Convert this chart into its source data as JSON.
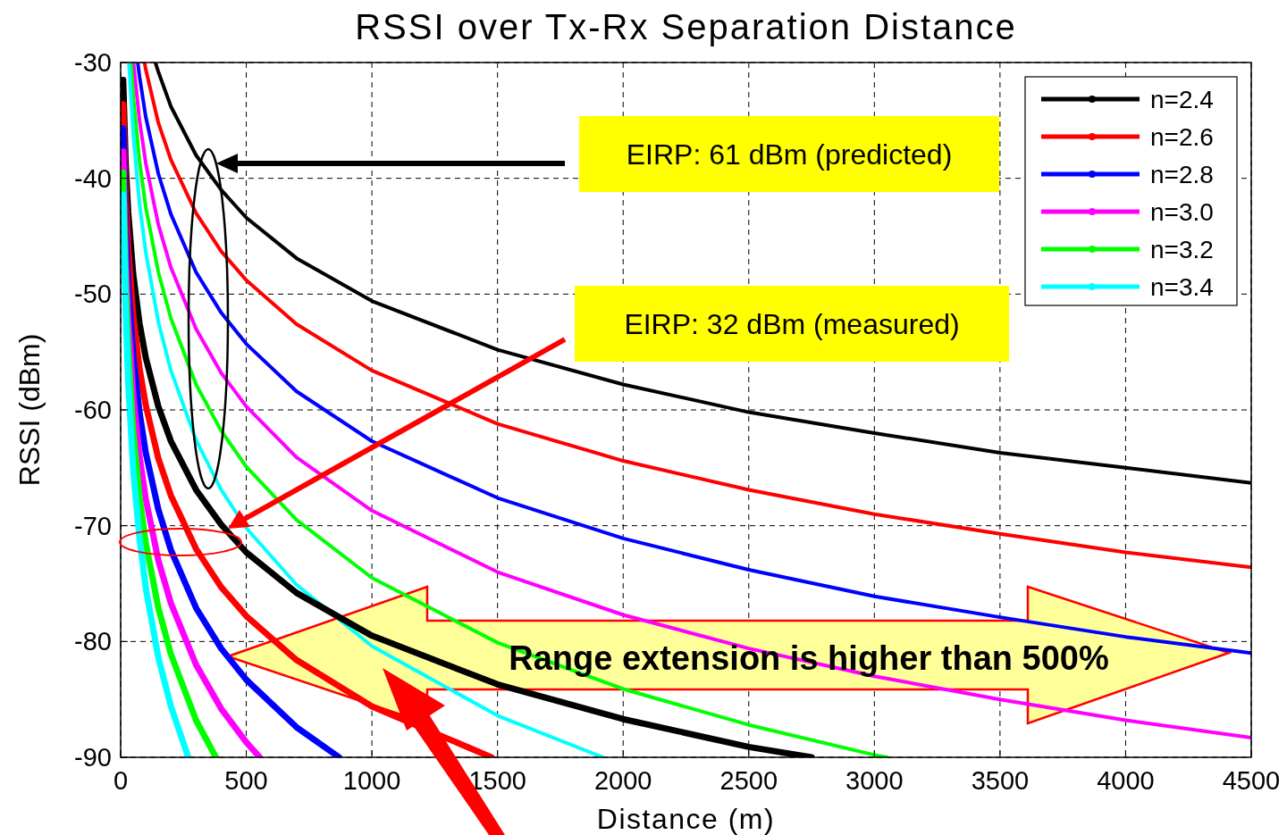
{
  "chart_data": {
    "type": "line",
    "title": "RSSI over Tx-Rx Separation Distance",
    "xlabel": "Distance (m)",
    "ylabel": "RSSI (dBm)",
    "xlim": [
      0,
      4500
    ],
    "ylim": [
      -90,
      -30
    ],
    "xticks": [
      0,
      500,
      1000,
      1500,
      2000,
      2500,
      3000,
      3500,
      4000,
      4500
    ],
    "yticks": [
      -90,
      -80,
      -70,
      -60,
      -50,
      -40,
      -30
    ],
    "grid": true,
    "legend": "top right",
    "annotations": [
      "EIRP: 61 dBm (predicted)",
      "EIRP: 32 dBm (measured)",
      "Range extension is higher than 500%"
    ],
    "series": [
      {
        "name": "n=2.4",
        "color": "#000000",
        "x": [
          138,
          150,
          200,
          300,
          400,
          500,
          700,
          1000,
          1500,
          2000,
          2500,
          3000,
          3500,
          4000,
          4500
        ],
        "values": [
          -30,
          -30.8,
          -33.8,
          -38.0,
          -41.0,
          -43.4,
          -46.9,
          -50.6,
          -54.8,
          -57.8,
          -60.2,
          -62.0,
          -63.7,
          -65.0,
          -66.3
        ]
      },
      {
        "name": "n=2.6",
        "color": "#ff0000",
        "x": [
          95,
          100,
          150,
          200,
          300,
          400,
          500,
          700,
          1000,
          1500,
          2000,
          2500,
          3000,
          3500,
          4000,
          4500
        ],
        "values": [
          -30,
          -30.6,
          -35.2,
          -38.4,
          -43.0,
          -46.3,
          -48.8,
          -52.6,
          -56.6,
          -61.2,
          -64.4,
          -66.9,
          -69.0,
          -70.7,
          -72.3,
          -73.6
        ]
      },
      {
        "name": "n=2.8",
        "color": "#0000ff",
        "x": [
          68,
          75,
          100,
          150,
          200,
          300,
          400,
          500,
          700,
          1000,
          1500,
          2000,
          2500,
          3000,
          3500,
          4000,
          4500
        ],
        "values": [
          -30,
          -31.2,
          -34.7,
          -39.6,
          -43.1,
          -48.1,
          -51.6,
          -54.3,
          -58.4,
          -62.7,
          -67.6,
          -71.1,
          -73.8,
          -76.1,
          -77.9,
          -79.6,
          -81.0
        ]
      },
      {
        "name": "n=3.0",
        "color": "#ff00ff",
        "x": [
          51,
          75,
          100,
          150,
          200,
          300,
          400,
          500,
          700,
          1000,
          1500,
          2000,
          2500,
          3000,
          3500,
          4000,
          4500
        ],
        "values": [
          -30,
          -35.0,
          -38.7,
          -44.0,
          -47.7,
          -53.0,
          -56.8,
          -59.7,
          -64.1,
          -68.7,
          -74.0,
          -77.7,
          -80.6,
          -83.0,
          -85.0,
          -86.8,
          -88.3
        ]
      },
      {
        "name": "n=3.2",
        "color": "#00ff00",
        "x": [
          41,
          50,
          75,
          100,
          150,
          200,
          300,
          400,
          500,
          700,
          1000,
          1500,
          2000,
          2500,
          3000,
          3050
        ],
        "values": [
          -30,
          -32.9,
          -38.5,
          -42.5,
          -48.1,
          -52.1,
          -57.8,
          -61.8,
          -64.9,
          -69.5,
          -74.5,
          -80.1,
          -84.1,
          -87.2,
          -89.8,
          -90
        ]
      },
      {
        "name": "n=3.4",
        "color": "#00ffff",
        "x": [
          33,
          50,
          75,
          100,
          150,
          200,
          300,
          400,
          500,
          700,
          1000,
          1500,
          1920
        ],
        "values": [
          -30,
          -36.2,
          -42.2,
          -46.4,
          -52.4,
          -56.6,
          -62.6,
          -66.9,
          -70.2,
          -75.1,
          -80.4,
          -86.4,
          -90
        ]
      },
      {
        "color": "#000000",
        "x": [
          10,
          20,
          30,
          50,
          75,
          100,
          150,
          200,
          300,
          400,
          500,
          700,
          1000,
          1500,
          2000,
          2500,
          2750
        ],
        "values": [
          -31.5,
          -38.7,
          -42.9,
          -48.3,
          -52.5,
          -55.5,
          -59.7,
          -62.7,
          -66.9,
          -69.9,
          -72.3,
          -75.8,
          -79.5,
          -83.7,
          -86.7,
          -89.1,
          -90
        ]
      },
      {
        "color": "#ff0000",
        "x": [
          10,
          20,
          30,
          50,
          75,
          100,
          150,
          200,
          300,
          400,
          500,
          700,
          1000,
          1476
        ],
        "values": [
          -33.6,
          -41.4,
          -46.0,
          -51.8,
          -56.4,
          -59.6,
          -64.2,
          -67.4,
          -72.0,
          -75.3,
          -77.8,
          -81.6,
          -85.6,
          -90
        ]
      },
      {
        "color": "#0000ff",
        "x": [
          10,
          20,
          30,
          50,
          75,
          100,
          150,
          200,
          300,
          400,
          500,
          700,
          870
        ],
        "values": [
          -35.7,
          -44.1,
          -49.1,
          -55.3,
          -60.2,
          -63.7,
          -68.6,
          -72.1,
          -77.1,
          -80.6,
          -83.3,
          -87.4,
          -90
        ]
      },
      {
        "color": "#ff00ff",
        "x": [
          10,
          20,
          30,
          50,
          75,
          100,
          150,
          200,
          300,
          400,
          500,
          554
        ],
        "values": [
          -37.7,
          -46.7,
          -52.0,
          -58.7,
          -64.0,
          -67.7,
          -73.0,
          -76.7,
          -82.0,
          -85.8,
          -88.7,
          -90
        ]
      },
      {
        "color": "#00ff00",
        "x": [
          10,
          20,
          30,
          50,
          75,
          100,
          150,
          200,
          300,
          379
        ],
        "values": [
          -39.5,
          -49.1,
          -54.8,
          -61.9,
          -67.5,
          -71.5,
          -77.1,
          -81.1,
          -86.8,
          -90
        ]
      },
      {
        "color": "#00ffff",
        "x": [
          10,
          20,
          30,
          50,
          75,
          100,
          150,
          200,
          269
        ],
        "values": [
          -41.4,
          -51.6,
          -57.6,
          -65.2,
          -71.1,
          -75.4,
          -81.4,
          -85.6,
          -90
        ]
      }
    ]
  }
}
